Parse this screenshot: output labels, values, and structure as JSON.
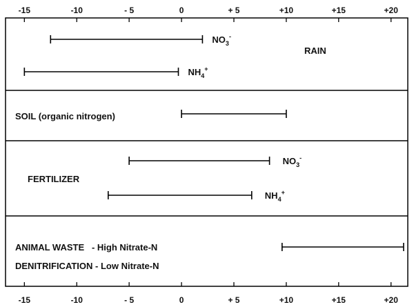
{
  "chart_data": {
    "type": "range",
    "xlim": [
      -16.8,
      21.6
    ],
    "x_ticks": [
      -15,
      -10,
      -5,
      0,
      5,
      10,
      15,
      20
    ],
    "x_tick_labels": [
      "-15",
      "-10",
      "- 5",
      "0",
      "+ 5",
      "+10",
      "+15",
      "+20"
    ],
    "panels": [
      {
        "labels": [
          "RAIN"
        ],
        "ranges": [
          {
            "name": "NO3",
            "species": "NO",
            "sub": "3",
            "sup": "-",
            "min": -12.5,
            "max": 2
          },
          {
            "name": "NH4",
            "species": "NH",
            "sub": "4",
            "sup": "+",
            "min": -15,
            "max": -0.3
          }
        ]
      },
      {
        "labels": [
          "SOIL (organic nitrogen)"
        ],
        "ranges": [
          {
            "name": "",
            "species": "",
            "sub": "",
            "sup": "",
            "min": 0,
            "max": 10
          }
        ]
      },
      {
        "labels": [
          "FERTILIZER"
        ],
        "ranges": [
          {
            "name": "NO3",
            "species": "NO",
            "sub": "3",
            "sup": "-",
            "min": -5,
            "max": 8.4
          },
          {
            "name": "NH4",
            "species": "NH",
            "sub": "4",
            "sup": "+",
            "min": -7,
            "max": 6.7
          }
        ]
      },
      {
        "labels": [
          "ANIMAL WASTE   - High Nitrate-N",
          "DENITRIFICATION - Low Nitrate-N"
        ],
        "ranges": [
          {
            "name": "",
            "species": "",
            "sub": "",
            "sup": "",
            "min": 9.6,
            "max": 21.2
          }
        ]
      }
    ]
  }
}
